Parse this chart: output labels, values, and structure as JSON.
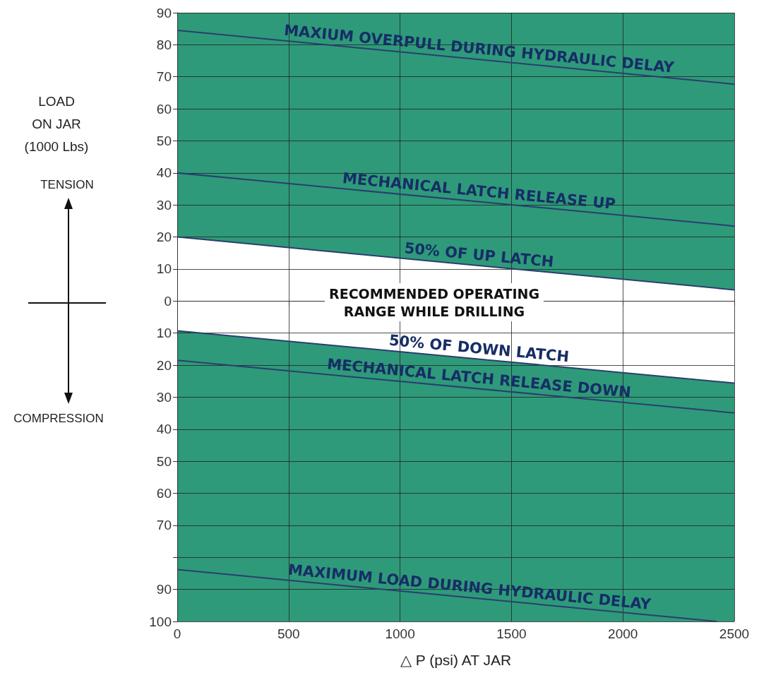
{
  "chart_data": {
    "type": "line",
    "xlabel": "△ P (psi) AT JAR",
    "ylabel": "LOAD\nON JAR\n(1000 Lbs)",
    "annotations": [
      "TENSION",
      "COMPRESSION",
      "RECOMMENDED OPERATING\nRANGE WHILE DRILLING"
    ],
    "xlim": [
      0,
      2500
    ],
    "xticks": [
      0,
      500,
      1000,
      1500,
      2000,
      2500
    ],
    "ylim": [
      -100,
      90
    ],
    "yticks": [
      {
        "value": -100,
        "label": "100"
      },
      {
        "value": -90,
        "label": "90"
      },
      {
        "value": -80,
        "label": null
      },
      {
        "value": -70,
        "label": "70"
      },
      {
        "value": -60,
        "label": "60"
      },
      {
        "value": -50,
        "label": "50"
      },
      {
        "value": -40,
        "label": "40"
      },
      {
        "value": -30,
        "label": "30"
      },
      {
        "value": -20,
        "label": "20"
      },
      {
        "value": -10,
        "label": "10"
      },
      0,
      10,
      20,
      30,
      40,
      50,
      60,
      70,
      80,
      90
    ],
    "grid": true,
    "bands": [
      {
        "axis": "y",
        "from": -100,
        "to": 90,
        "color": "#2e9a7a"
      }
    ],
    "legend": false,
    "marker": "none",
    "line_style": "solid",
    "series": [
      {
        "name": "MAXIUM OVERPULL DURING HYDRAULIC DELAY",
        "color": "#2b3e6e",
        "x": [
          0,
          2500
        ],
        "values": [
          84.5,
          67.7
        ]
      },
      {
        "name": "MECHANICAL LATCH RELEASE UP",
        "color": "#2b3e6e",
        "x": [
          0,
          2500
        ],
        "values": [
          40,
          23.4
        ]
      },
      {
        "name": "50% OF UP LATCH",
        "color": "#2b3e6e",
        "x": [
          0,
          2500
        ],
        "values": [
          20,
          3.5
        ],
        "lower": [
          -9.3,
          -25.6
        ],
        "upper": [
          20,
          3.5
        ]
      },
      {
        "name": "50% OF DOWN LATCH",
        "color": "#2b3e6e",
        "x": [
          0,
          2500
        ],
        "values": [
          -9.3,
          -25.6
        ]
      },
      {
        "name": "MECHANICAL LATCH RELEASE DOWN",
        "color": "#2b3e6e",
        "x": [
          0,
          2500
        ],
        "values": [
          -18.5,
          -34.9
        ]
      },
      {
        "name": "MAXIMUM LOAD DURING HYDRAULIC DELAY",
        "color": "#2b3e6e",
        "x": [
          0,
          2421
        ],
        "values": [
          -83.8,
          -100
        ]
      }
    ]
  }
}
